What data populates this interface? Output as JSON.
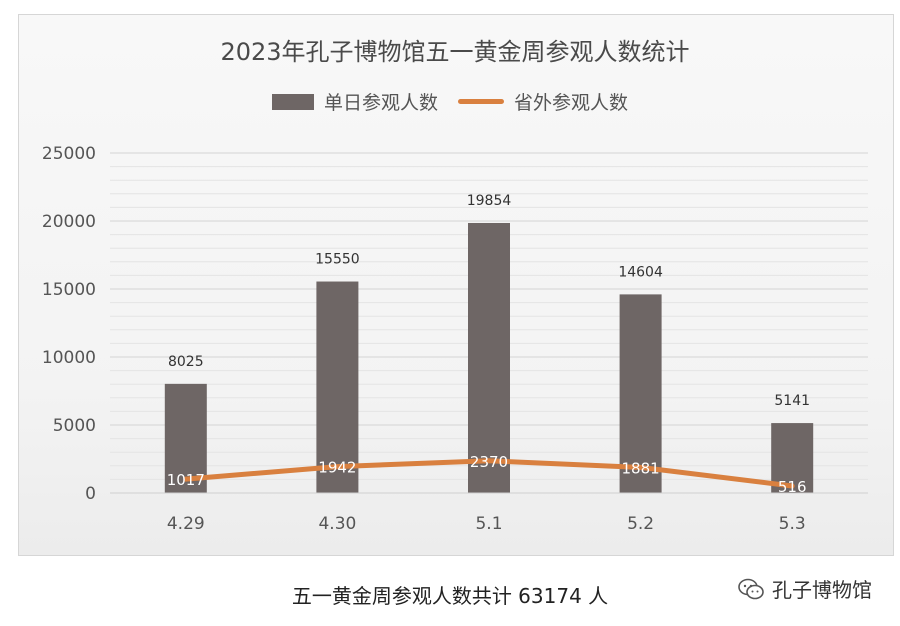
{
  "chart_data": {
    "type": "bar",
    "title": "2023年孔子博物馆五一黄金周参观人数统计",
    "categories": [
      "4.29",
      "4.30",
      "5.1",
      "5.2",
      "5.3"
    ],
    "series": [
      {
        "name": "单日参观人数",
        "type": "bar",
        "color": "#6e6665",
        "values": [
          8025,
          15550,
          19854,
          14604,
          5141
        ]
      },
      {
        "name": "省外参观人数",
        "type": "line",
        "color": "#d9803f",
        "values": [
          1017,
          1942,
          2370,
          1881,
          516
        ]
      }
    ],
    "ylim": [
      0,
      25000
    ],
    "yticks": [
      0,
      5000,
      10000,
      15000,
      20000,
      25000
    ],
    "grid": true,
    "legend": "top"
  },
  "caption": "五一黄金周参观人数共计 63174 人",
  "watermark": {
    "text": "孔子博物馆",
    "icon": "wechat-icon"
  }
}
